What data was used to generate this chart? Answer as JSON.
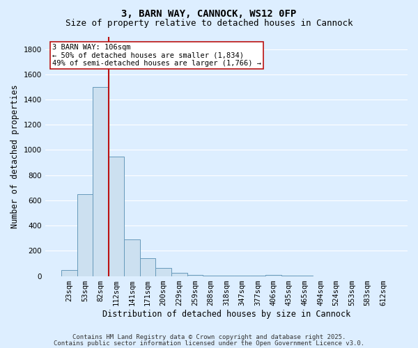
{
  "title": "3, BARN WAY, CANNOCK, WS12 0FP",
  "subtitle": "Size of property relative to detached houses in Cannock",
  "xlabel": "Distribution of detached houses by size in Cannock",
  "ylabel": "Number of detached properties",
  "bar_labels": [
    "23sqm",
    "53sqm",
    "82sqm",
    "112sqm",
    "141sqm",
    "171sqm",
    "200sqm",
    "229sqm",
    "259sqm",
    "288sqm",
    "318sqm",
    "347sqm",
    "377sqm",
    "406sqm",
    "435sqm",
    "465sqm",
    "494sqm",
    "524sqm",
    "553sqm",
    "583sqm",
    "612sqm"
  ],
  "bar_values": [
    50,
    650,
    1500,
    950,
    290,
    140,
    65,
    25,
    10,
    5,
    2,
    3,
    1,
    8,
    1,
    1,
    0,
    0,
    0,
    0,
    0
  ],
  "bar_color": "#cce0f0",
  "bar_edge_color": "#6699bb",
  "bg_color": "#ddeeff",
  "grid_color": "#ffffff",
  "vline_position": 2.5,
  "vline_color": "#bb1111",
  "annotation_text": "3 BARN WAY: 106sqm\n← 50% of detached houses are smaller (1,834)\n49% of semi-detached houses are larger (1,766) →",
  "annotation_box_facecolor": "#ffffff",
  "annotation_box_edgecolor": "#bb1111",
  "ylim": [
    0,
    1900
  ],
  "yticks": [
    0,
    200,
    400,
    600,
    800,
    1000,
    1200,
    1400,
    1600,
    1800
  ],
  "footnote1": "Contains HM Land Registry data © Crown copyright and database right 2025.",
  "footnote2": "Contains public sector information licensed under the Open Government Licence v3.0.",
  "title_fontsize": 10,
  "subtitle_fontsize": 9,
  "xlabel_fontsize": 8.5,
  "ylabel_fontsize": 8.5,
  "tick_fontsize": 7.5,
  "annotation_fontsize": 7.5,
  "footnote_fontsize": 6.5
}
